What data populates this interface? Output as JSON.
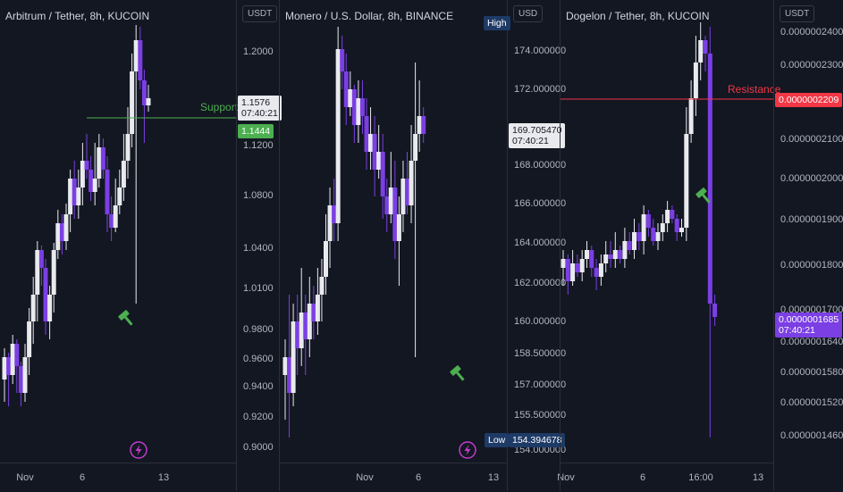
{
  "colors": {
    "background": "#131722",
    "bull": "#e9eaee",
    "bear": "#7b3fe4",
    "support": "#4caf50",
    "resistance": "#f23645",
    "hammer": "#4caf50",
    "flash_badge": "#c43bd1"
  },
  "panes": [
    {
      "title": "Arbitrum / Tether, 8h, KUCOIN",
      "unit": "USDT",
      "y_ticks": [
        "1.2000",
        "1.1200",
        "1.0800",
        "1.0400",
        "1.0100",
        "0.9800",
        "0.9600",
        "0.9400",
        "0.9200",
        "0.9000"
      ],
      "x_ticks": [
        "Nov",
        "6",
        "13"
      ],
      "current_price": "1.1576",
      "countdown": "07:40:21",
      "level_label": "Support",
      "level_price": "1.1444",
      "icons": [
        "hammer-icon",
        "flash-icon"
      ]
    },
    {
      "title": "Monero / U.S. Dollar, 8h, BINANCE",
      "unit": "USD",
      "y_ticks": [
        "174.000000",
        "172.000000",
        "168.000000",
        "166.000000",
        "164.000000",
        "162.000000",
        "160.000000",
        "158.500000",
        "157.000000",
        "155.500000",
        "154.000000"
      ],
      "x_ticks": [
        "Nov",
        "6",
        "13"
      ],
      "current_price": "169.705470",
      "countdown": "07:40:21",
      "high_label": "High",
      "low_label": "Low",
      "low_price": "154.394678",
      "icons": [
        "hammer-icon",
        "flash-icon"
      ]
    },
    {
      "title": "Dogelon / Tether, 8h, KUCOIN",
      "unit": "USDT",
      "y_ticks": [
        "0.0000002400",
        "0.0000002300",
        "0.0000002100",
        "0.0000002000",
        "0.0000001900",
        "0.0000001800",
        "0.0000001700",
        "0.0000001640",
        "0.0000001580",
        "0.0000001520",
        "0.0000001460"
      ],
      "x_ticks": [
        "Nov",
        "6",
        "16:00",
        "13"
      ],
      "current_price": "0.0000001685",
      "countdown": "07:40:21",
      "level_label": "Resistance",
      "level_price": "0.0000002209",
      "icons": [
        "hammer-icon"
      ]
    }
  ]
}
